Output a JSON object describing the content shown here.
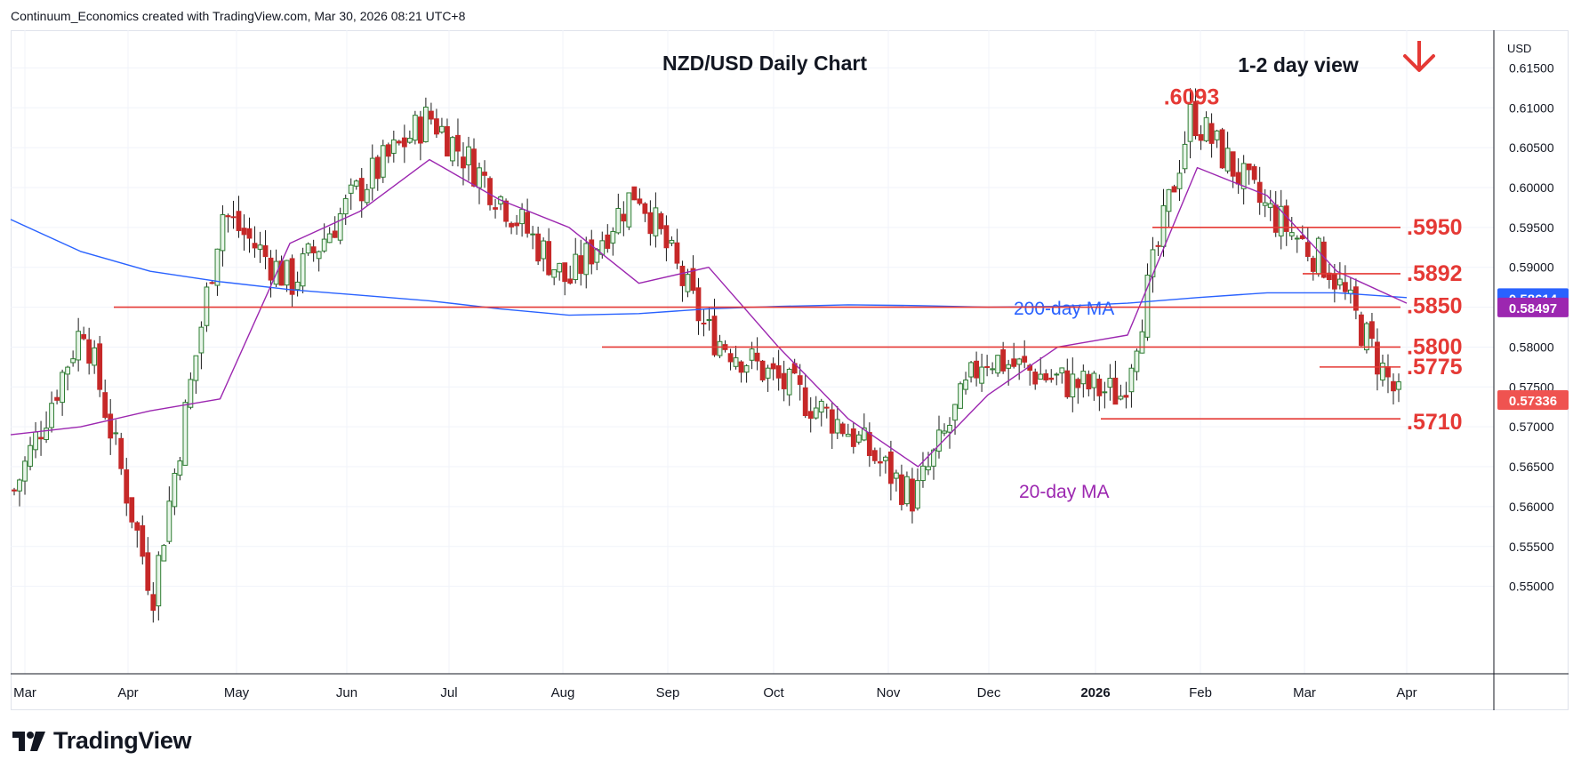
{
  "header": {
    "attribution": "Continuum_Economics created with TradingView.com, Mar 30, 2026 08:21 UTC+8"
  },
  "brand": {
    "name": "TradingView"
  },
  "colors": {
    "up": "#26a69a",
    "down": "#ef5350",
    "candle_up": "#2e7d32",
    "candle_down": "#c62828",
    "ma200": "#2962ff",
    "ma20": "#9c27b0",
    "level": "#e53935",
    "grid": "#f0f3fa",
    "axis_text": "#131722"
  },
  "chart_data": {
    "type": "candlestick",
    "title": "NZD/USD Daily Chart",
    "view_label": "1-2 day view",
    "view_direction": "down",
    "currency": "USD",
    "x_ticks": [
      "Mar",
      "Apr",
      "May",
      "Jun",
      "Jul",
      "Aug",
      "Sep",
      "Oct",
      "Nov",
      "Dec",
      "2026",
      "Feb",
      "Mar",
      "Apr"
    ],
    "y_ticks": [
      "0.61500",
      "0.61000",
      "0.60500",
      "0.60000",
      "0.59500",
      "0.59000",
      "0.58500",
      "0.58000",
      "0.57500",
      "0.57000",
      "0.56500",
      "0.56000",
      "0.55500",
      "0.55000"
    ],
    "ylim": [
      0.5455,
      0.6185
    ],
    "price_tags": [
      {
        "label": "0.58614",
        "value": 0.58614,
        "color": "#2962ff"
      },
      {
        "label": "0.58497",
        "value": 0.58497,
        "color": "#9c27b0"
      },
      {
        "label": "0.57336",
        "value": 0.57336,
        "color": "#ef5350"
      }
    ],
    "levels": [
      {
        "label": ".5950",
        "value": 0.595
      },
      {
        "label": ".5892",
        "value": 0.5892
      },
      {
        "label": ".5850",
        "value": 0.585
      },
      {
        "label": ".5800",
        "value": 0.58
      },
      {
        "label": ".5775",
        "value": 0.5775
      },
      {
        "label": ".5710",
        "value": 0.571
      }
    ],
    "annotations": [
      {
        "label": ".6093",
        "value": 0.6093
      },
      {
        "label": "200-day MA"
      },
      {
        "label": "20-day MA"
      }
    ],
    "series": [
      {
        "name": "200-day MA",
        "values": [
          0.596,
          0.592,
          0.5895,
          0.5882,
          0.5872,
          0.5865,
          0.5858,
          0.5848,
          0.584,
          0.5842,
          0.5848,
          0.5851,
          0.5853,
          0.5852,
          0.585,
          0.5851,
          0.5855,
          0.5862,
          0.5868,
          0.5868,
          0.5862
        ]
      },
      {
        "name": "20-day MA",
        "values": [
          0.569,
          0.57,
          0.572,
          0.5735,
          0.593,
          0.597,
          0.6035,
          0.5985,
          0.595,
          0.588,
          0.59,
          0.58,
          0.571,
          0.565,
          0.574,
          0.58,
          0.5815,
          0.6025,
          0.599,
          0.5895,
          0.5855
        ]
      },
      {
        "name": "NZD/USD",
        "values": [
          0.562,
          0.583,
          0.549,
          0.597,
          0.588,
          0.6,
          0.609,
          0.599,
          0.588,
          0.6,
          0.582,
          0.576,
          0.57,
          0.561,
          0.579,
          0.576,
          0.574,
          0.6093,
          0.598,
          0.59,
          0.5733
        ]
      }
    ]
  }
}
